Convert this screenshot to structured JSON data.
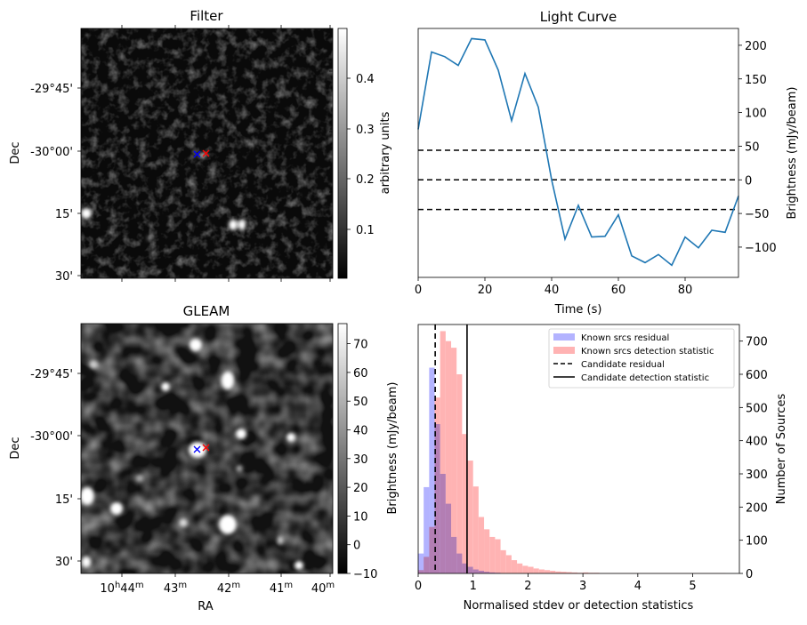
{
  "figure": {
    "panels": {
      "filter": {
        "title": "Filter",
        "ylabel": "Dec",
        "cbar_label": "arbitrary units",
        "cbar_ticks": [
          "0.1",
          "0.2",
          "0.3",
          "0.4"
        ],
        "dec_ticks": [
          "-29°45'",
          "-30°00'",
          "15'",
          "30'"
        ]
      },
      "gleam": {
        "title": "GLEAM",
        "ylabel": "Dec",
        "xlabel": "RA",
        "cbar_label": "Brightness (mJy/beam)",
        "cbar_ticks": [
          "−10",
          "0",
          "10",
          "20",
          "30",
          "40",
          "50",
          "60",
          "70"
        ],
        "dec_ticks": [
          "-29°45'",
          "-30°00'",
          "15'",
          "30'"
        ]
      },
      "lightcurve": {
        "title": "Light Curve",
        "xlabel": "Time (s)",
        "ylabel": "Brightness (mJy/beam)"
      },
      "histogram": {
        "xlabel": "Normalised stdev or detection statistics",
        "ylabel": "Number of Sources"
      }
    },
    "colors": {
      "line": "#1f77b4",
      "blue_hist": "#b3b3ff",
      "red_hist": "#ffb3b3",
      "overlap": "#a066b3"
    }
  },
  "chart_data": [
    {
      "type": "heatmap",
      "title": "Filter",
      "ylabel": "Dec",
      "colorbar": {
        "label": "arbitrary units",
        "range": [
          0.01,
          0.49
        ],
        "ticks": [
          0.1,
          0.2,
          0.3,
          0.4
        ]
      },
      "yticks": [
        "-29°45'",
        "-30°00'",
        "15'",
        "30'"
      ],
      "markers": [
        {
          "symbol": "x",
          "color": "blue"
        },
        {
          "symbol": "x",
          "color": "red"
        }
      ]
    },
    {
      "type": "line",
      "title": "Light Curve",
      "xlabel": "Time (s)",
      "ylabel": "Brightness (mJy/beam)",
      "xlim": [
        0,
        96
      ],
      "ylim": [
        -145,
        225
      ],
      "xticks": [
        0,
        20,
        40,
        60,
        80
      ],
      "yticks": [
        -100,
        -50,
        0,
        50,
        100,
        150,
        200
      ],
      "x": [
        0,
        4,
        8,
        12,
        16,
        20,
        24,
        28,
        32,
        36,
        40,
        44,
        48,
        52,
        56,
        60,
        64,
        68,
        72,
        76,
        80,
        84,
        88,
        92,
        96
      ],
      "values": [
        75,
        190,
        183,
        170,
        210,
        208,
        163,
        88,
        158,
        108,
        0,
        -88,
        -38,
        -85,
        -84,
        -52,
        -113,
        -123,
        -111,
        -127,
        -85,
        -101,
        -75,
        -78,
        -24
      ],
      "hlines": [
        44,
        0,
        -44
      ]
    },
    {
      "type": "heatmap",
      "title": "GLEAM",
      "xlabel": "RA",
      "ylabel": "Dec",
      "colorbar": {
        "label": "Brightness (mJy/beam)",
        "range": [
          -10,
          77
        ],
        "ticks": [
          -10,
          0,
          10,
          20,
          30,
          40,
          50,
          60,
          70
        ]
      },
      "xticks": [
        "10h44m",
        "43m",
        "42m",
        "41m",
        "40m"
      ],
      "yticks": [
        "-29°45'",
        "-30°00'",
        "15'",
        "30'"
      ],
      "markers": [
        {
          "symbol": "x",
          "color": "blue"
        },
        {
          "symbol": "x",
          "color": "red"
        }
      ]
    },
    {
      "type": "bar",
      "xlabel": "Normalised stdev or detection statistics",
      "ylabel": "Number of Sources",
      "xlim": [
        0,
        5.85
      ],
      "ylim": [
        0,
        750
      ],
      "xticks": [
        0,
        1,
        2,
        3,
        4,
        5
      ],
      "yticks": [
        0,
        100,
        200,
        300,
        400,
        500,
        600,
        700
      ],
      "bin_width": 0.1,
      "series": [
        {
          "name": "Known srcs residual",
          "bin_start": 0,
          "values": [
            60,
            260,
            620,
            450,
            300,
            210,
            110,
            60,
            30,
            20,
            12,
            8,
            5,
            3,
            2
          ]
        },
        {
          "name": "Known srcs detection statistic",
          "bin_start": 0,
          "values": [
            10,
            50,
            140,
            530,
            730,
            700,
            680,
            600,
            420,
            340,
            262,
            170,
            133,
            110,
            103,
            70,
            55,
            40,
            30,
            23,
            20,
            15,
            12,
            10,
            8,
            6,
            5,
            4,
            3,
            2,
            3,
            2,
            2,
            1,
            1,
            1,
            1,
            1,
            1,
            1,
            1,
            1,
            1,
            1,
            1,
            1,
            1,
            1,
            1,
            1,
            1,
            1,
            1,
            1,
            1,
            1
          ]
        }
      ],
      "vlines": [
        {
          "name": "Candidate residual",
          "x": 0.31,
          "style": "dashed"
        },
        {
          "name": "Candidate detection statistic",
          "x": 0.89,
          "style": "solid"
        }
      ]
    }
  ]
}
